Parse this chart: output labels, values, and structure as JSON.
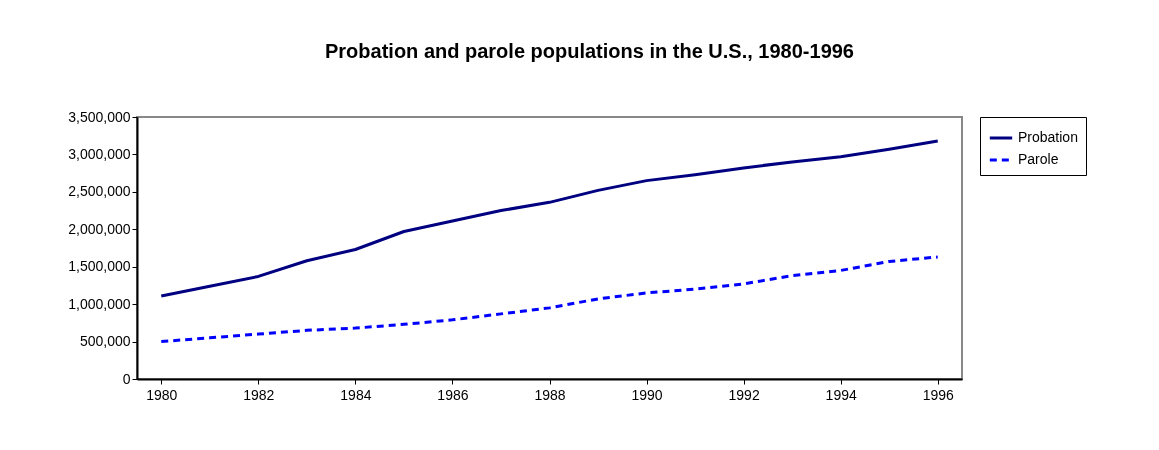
{
  "chart_data": {
    "type": "line",
    "title": "Probation and parole populations in the U.S., 1980-1996",
    "x": [
      1980,
      1981,
      1982,
      1983,
      1984,
      1985,
      1986,
      1987,
      1988,
      1989,
      1990,
      1991,
      1992,
      1993,
      1994,
      1995,
      1996
    ],
    "series": [
      {
        "name": "Probation",
        "color": "#000080",
        "line_style": "solid",
        "values": [
          1110000,
          1240000,
          1370000,
          1580000,
          1730000,
          1970000,
          2110000,
          2250000,
          2360000,
          2520000,
          2650000,
          2730000,
          2820000,
          2900000,
          2970000,
          3070000,
          3180000
        ]
      },
      {
        "name": "Parole",
        "color": "#0000ff",
        "line_style": "dashed",
        "values": [
          500000,
          550000,
          600000,
          650000,
          680000,
          730000,
          790000,
          870000,
          950000,
          1070000,
          1150000,
          1200000,
          1270000,
          1380000,
          1450000,
          1570000,
          1630000
        ]
      }
    ],
    "xlim": [
      1979.5,
      1996.5
    ],
    "xticks": [
      1980,
      1982,
      1984,
      1986,
      1988,
      1990,
      1992,
      1994,
      1996
    ],
    "ylim": [
      0,
      3500000
    ],
    "yticks": [
      0,
      {
        "value": 500000,
        "label": "500,000"
      },
      {
        "value": 1000000,
        "label": "1,000,000"
      },
      {
        "value": 1500000,
        "label": "1,500,000"
      },
      {
        "value": 2000000,
        "label": "2,000,000"
      },
      {
        "value": 2500000,
        "label": "2,500,000"
      },
      {
        "value": 3000000,
        "label": "3,000,000"
      },
      {
        "value": 3500000,
        "label": "3,500,000"
      }
    ],
    "grid": false,
    "legend": "right",
    "marker": "none"
  }
}
